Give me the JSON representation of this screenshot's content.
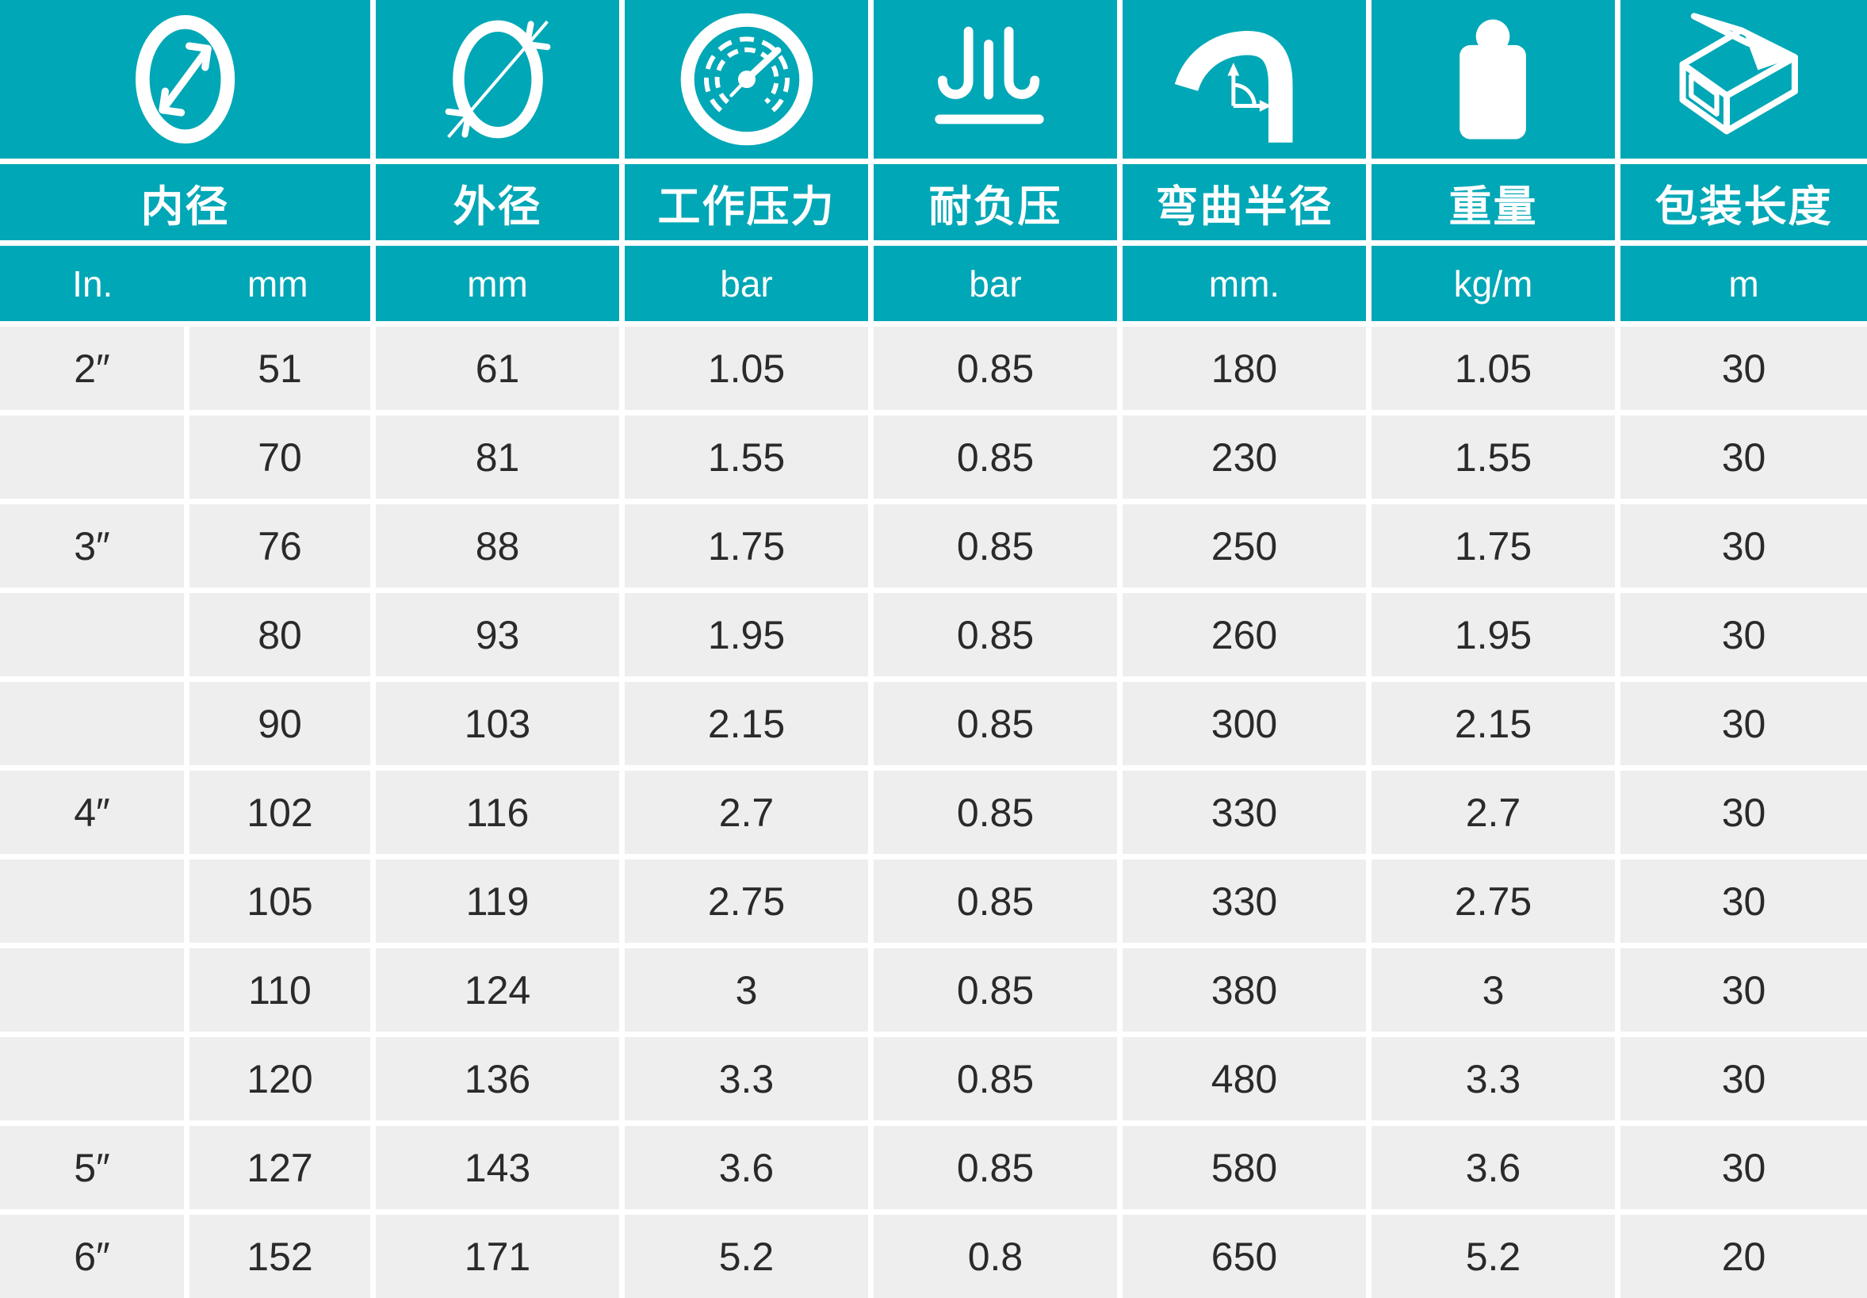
{
  "meta": {
    "title": "hose-specification-table"
  },
  "colors": {
    "header_teal": "#00a7b6",
    "cell_gray": "#eeeeee",
    "gutter_white": "#ffffff",
    "text_dark": "#2a2a2a",
    "text_light": "#ffffff"
  },
  "table": {
    "columns": [
      {
        "label": "内径",
        "icon": "inner-diameter-icon",
        "units": [
          "In.",
          "mm"
        ]
      },
      {
        "label": "外径",
        "icon": "outer-diameter-icon",
        "unit": "mm"
      },
      {
        "label": "工作压力",
        "icon": "pressure-gauge-icon",
        "unit": "bar"
      },
      {
        "label": "耐负压",
        "icon": "vacuum-resistance-icon",
        "unit": "bar"
      },
      {
        "label": "弯曲半径",
        "icon": "bend-radius-icon",
        "unit": "mm."
      },
      {
        "label": "重量",
        "icon": "weight-icon",
        "unit": "kg/m"
      },
      {
        "label": "包装长度",
        "icon": "package-length-icon",
        "unit": "m"
      }
    ],
    "rows": [
      [
        "2″",
        "51",
        "61",
        "1.05",
        "0.85",
        "180",
        "1.05",
        "30"
      ],
      [
        "",
        "70",
        "81",
        "1.55",
        "0.85",
        "230",
        "1.55",
        "30"
      ],
      [
        "3″",
        "76",
        "88",
        "1.75",
        "0.85",
        "250",
        "1.75",
        "30"
      ],
      [
        "",
        "80",
        "93",
        "1.95",
        "0.85",
        "260",
        "1.95",
        "30"
      ],
      [
        "",
        "90",
        "103",
        "2.15",
        "0.85",
        "300",
        "2.15",
        "30"
      ],
      [
        "4″",
        "102",
        "116",
        "2.7",
        "0.85",
        "330",
        "2.7",
        "30"
      ],
      [
        "",
        "105",
        "119",
        "2.75",
        "0.85",
        "330",
        "2.75",
        "30"
      ],
      [
        "",
        "110",
        "124",
        "3",
        "0.85",
        "380",
        "3",
        "30"
      ],
      [
        "",
        "120",
        "136",
        "3.3",
        "0.85",
        "480",
        "3.3",
        "30"
      ],
      [
        "5″",
        "127",
        "143",
        "3.6",
        "0.85",
        "580",
        "3.6",
        "30"
      ],
      [
        "6″",
        "152",
        "171",
        "5.2",
        "0.8",
        "650",
        "5.2",
        "20"
      ]
    ]
  }
}
